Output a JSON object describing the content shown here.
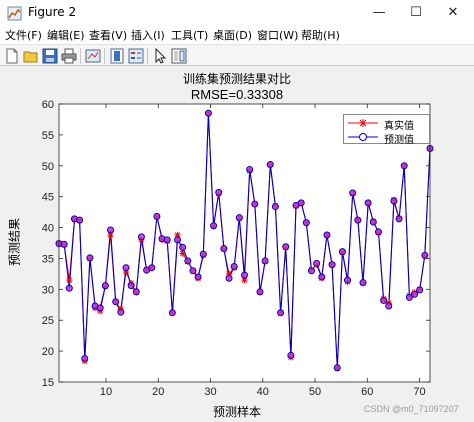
{
  "window": {
    "title": "Figure 2",
    "controls": {
      "minimize": "—",
      "maximize": "☐",
      "close": "✕"
    }
  },
  "menubar": [
    "文件(F)",
    "编辑(E)",
    "查看(V)",
    "插入(I)",
    "工具(T)",
    "桌面(D)",
    "窗口(W)",
    "帮助(H)"
  ],
  "toolbar": [
    "new-figure-icon",
    "open-file-icon",
    "save-icon",
    "print-icon",
    "link-plot-icon",
    "insert-colorbar-icon",
    "insert-legend-icon",
    "pointer-icon",
    "plot-tools-icon"
  ],
  "watermark": "CSDN @m0_71097207",
  "colors": {
    "true_series": "#ff0000",
    "pred_series": "#0000cc",
    "pred_marker_fill": "#cc33cc"
  },
  "chart_data": {
    "type": "line",
    "title": "训练集预测结果对比",
    "subtitle": "RMSE=0.33308",
    "xlabel": "预测样本",
    "ylabel": "预测结果",
    "xlim": [
      1,
      72
    ],
    "ylim": [
      15,
      60
    ],
    "xticks": [
      10,
      20,
      30,
      40,
      50,
      60,
      70
    ],
    "yticks": [
      15,
      20,
      25,
      30,
      35,
      40,
      45,
      50,
      55,
      60
    ],
    "grid": false,
    "legend_position": "top-right",
    "series": [
      {
        "name": "真实值",
        "marker": "asterisk",
        "values": [
          37.5,
          37.2,
          31.5,
          41.3,
          41.2,
          18.4,
          35.0,
          27.0,
          26.5,
          30.5,
          38.8,
          28.0,
          26.8,
          32.8,
          31.0,
          29.5,
          38.0,
          33.2,
          33.5,
          41.8,
          38.0,
          37.8,
          26.2,
          38.8,
          35.8,
          34.5,
          33.0,
          31.8,
          35.5,
          58.5,
          40.2,
          45.5,
          36.5,
          32.5,
          33.5,
          41.5,
          31.5,
          49.2,
          43.8,
          29.5,
          34.5,
          50.2,
          43.5,
          26.2,
          36.8,
          19.0,
          43.5,
          44.0,
          40.8,
          33.2,
          34.0,
          31.8,
          38.8,
          34.0,
          17.2,
          36.0,
          31.2,
          45.5,
          41.2,
          31.0,
          44.0,
          41.0,
          39.2,
          28.5,
          27.8,
          44.5,
          41.5,
          50.0,
          29.0,
          29.5,
          30.0,
          35.5,
          52.8
        ]
      },
      {
        "name": "预测值",
        "marker": "circle",
        "values": [
          37.4,
          37.3,
          30.2,
          41.4,
          41.2,
          18.8,
          35.1,
          27.3,
          27.0,
          30.6,
          39.6,
          28.0,
          26.3,
          33.5,
          30.6,
          29.6,
          38.5,
          33.1,
          33.5,
          41.8,
          38.2,
          38.0,
          26.2,
          38.0,
          36.8,
          34.6,
          33.0,
          32.0,
          35.7,
          58.5,
          40.3,
          45.7,
          36.6,
          31.8,
          33.7,
          41.6,
          32.3,
          49.4,
          43.8,
          29.6,
          34.6,
          50.2,
          43.4,
          26.2,
          36.9,
          19.3,
          43.6,
          44.0,
          40.8,
          33.0,
          34.2,
          32.0,
          38.8,
          34.0,
          17.3,
          36.1,
          31.5,
          45.6,
          41.2,
          31.1,
          44.0,
          40.9,
          39.3,
          28.2,
          27.3,
          44.3,
          41.4,
          50.0,
          28.7,
          29.2,
          29.9,
          35.5,
          52.8
        ]
      }
    ]
  }
}
